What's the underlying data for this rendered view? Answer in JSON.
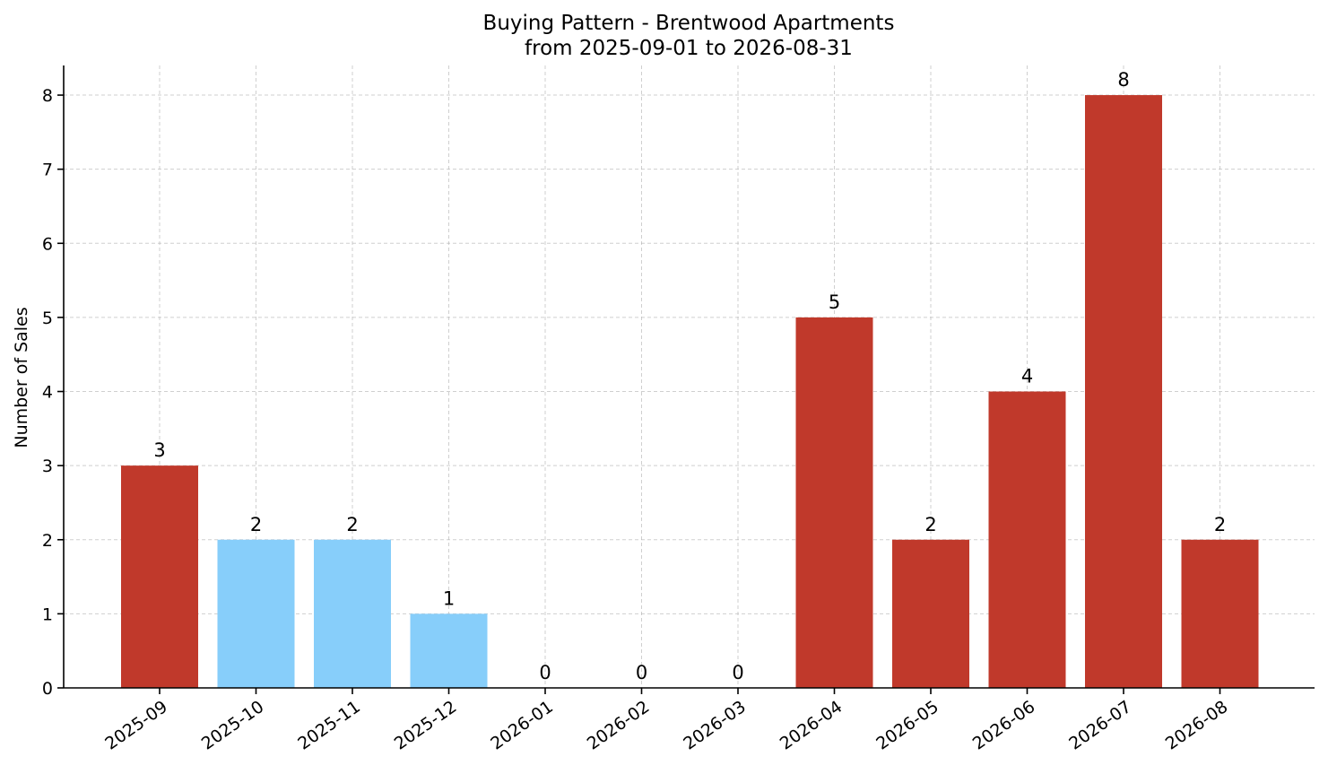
{
  "chart_data": {
    "type": "bar",
    "title": "Buying Pattern - Brentwood Apartments",
    "subtitle": "from 2025-09-01 to 2026-08-31",
    "xlabel": "",
    "ylabel": "Number of Sales",
    "categories": [
      "2025-09",
      "2025-10",
      "2025-11",
      "2025-12",
      "2026-01",
      "2026-02",
      "2026-03",
      "2026-04",
      "2026-05",
      "2026-06",
      "2026-07",
      "2026-08"
    ],
    "values": [
      3,
      2,
      2,
      1,
      0,
      0,
      0,
      5,
      2,
      4,
      8,
      2
    ],
    "bar_colors": [
      "#c0392b",
      "#87cefa",
      "#87cefa",
      "#87cefa",
      "#87cefa",
      "#87cefa",
      "#87cefa",
      "#c0392b",
      "#c0392b",
      "#c0392b",
      "#c0392b",
      "#c0392b"
    ],
    "yticks": [
      0,
      1,
      2,
      3,
      4,
      5,
      6,
      7,
      8
    ],
    "ylim": [
      0,
      8.4
    ],
    "grid": true,
    "legend": "none"
  }
}
